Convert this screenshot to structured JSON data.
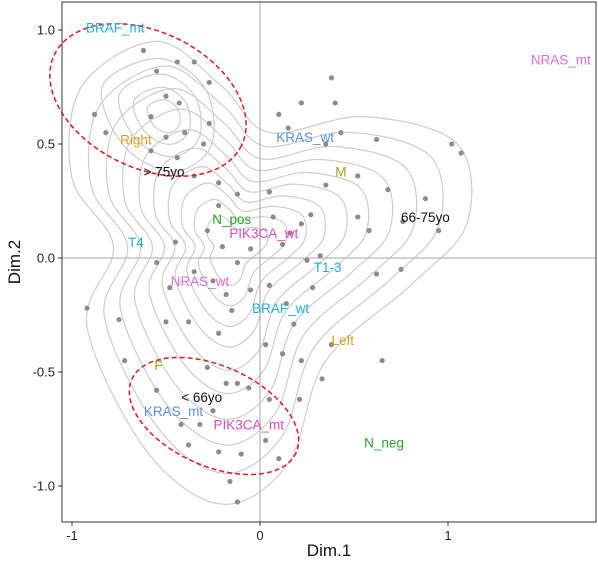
{
  "chart_data": {
    "type": "scatter",
    "title": "",
    "xlabel": "Dim.1",
    "ylabel": "Dim.2",
    "xlim": [
      -1.05,
      1.85
    ],
    "ylim": [
      -1.15,
      1.12
    ],
    "xticks": [
      -1,
      0,
      1
    ],
    "yticks": [
      -1.0,
      -0.5,
      0.0,
      0.5,
      1.0
    ],
    "xtick_labels": [
      "-1",
      "0",
      "1"
    ],
    "ytick_labels": [
      "-1.0",
      "-0.5",
      "0.0",
      "0.5",
      "1.0"
    ],
    "grid": false,
    "reference_lines": {
      "x": 0,
      "y": 0
    },
    "category_labels": [
      {
        "text": "BRAF_mt",
        "x": -0.77,
        "y": 1.01,
        "color": "#1fb5c9"
      },
      {
        "text": "NRAS_mt",
        "x": 1.6,
        "y": 0.87,
        "color": "#d66ed6"
      },
      {
        "text": "Right",
        "x": -0.66,
        "y": 0.52,
        "color": "#d4a020"
      },
      {
        "text": "KRAS_wt",
        "x": 0.24,
        "y": 0.53,
        "color": "#5b8fd9"
      },
      {
        "text": "> 75yo",
        "x": -0.51,
        "y": 0.38,
        "color": "#111111"
      },
      {
        "text": "M",
        "x": 0.43,
        "y": 0.38,
        "color": "#a0a020"
      },
      {
        "text": "N_pos",
        "x": -0.15,
        "y": 0.17,
        "color": "#2ca02c"
      },
      {
        "text": "66-75yo",
        "x": 0.88,
        "y": 0.18,
        "color": "#111111"
      },
      {
        "text": "PIK3CA_wt",
        "x": 0.02,
        "y": 0.11,
        "color": "#e04ab3"
      },
      {
        "text": "T4",
        "x": -0.66,
        "y": 0.07,
        "color": "#1fb5b5"
      },
      {
        "text": "T1-3",
        "x": 0.36,
        "y": -0.04,
        "color": "#1fb5b5"
      },
      {
        "text": "NRAS_wt",
        "x": -0.32,
        "y": -0.1,
        "color": "#d66ed6"
      },
      {
        "text": "BRAF_wt",
        "x": 0.11,
        "y": -0.22,
        "color": "#1fb5c9"
      },
      {
        "text": "Left",
        "x": 0.44,
        "y": -0.36,
        "color": "#d4a020"
      },
      {
        "text": "F",
        "x": -0.54,
        "y": -0.47,
        "color": "#a0a020"
      },
      {
        "text": "< 66yo",
        "x": -0.31,
        "y": -0.61,
        "color": "#111111"
      },
      {
        "text": "KRAS_mt",
        "x": -0.46,
        "y": -0.67,
        "color": "#5b8fd9"
      },
      {
        "text": "PIK3CA_mt",
        "x": -0.06,
        "y": -0.73,
        "color": "#e04ab3"
      },
      {
        "text": "N_neg",
        "x": 0.66,
        "y": -0.81,
        "color": "#2ca02c"
      }
    ],
    "points": [
      [
        -0.62,
        0.91
      ],
      [
        -0.55,
        0.82
      ],
      [
        -0.44,
        0.86
      ],
      [
        -0.35,
        0.86
      ],
      [
        -0.27,
        0.77
      ],
      [
        -0.27,
        0.59
      ],
      [
        -0.5,
        0.71
      ],
      [
        -0.43,
        0.68
      ],
      [
        -0.58,
        0.62
      ],
      [
        -0.88,
        0.63
      ],
      [
        -0.82,
        0.55
      ],
      [
        -0.5,
        0.53
      ],
      [
        -0.4,
        0.55
      ],
      [
        -0.3,
        0.5
      ],
      [
        -0.44,
        0.44
      ],
      [
        -0.58,
        0.47
      ],
      [
        -0.35,
        0.36
      ],
      [
        -0.22,
        0.33
      ],
      [
        -0.22,
        0.23
      ],
      [
        -0.12,
        0.28
      ],
      [
        0.05,
        0.29
      ],
      [
        0.07,
        0.18
      ],
      [
        0.16,
        0.11
      ],
      [
        0.22,
        0.15
      ],
      [
        0.27,
        0.19
      ],
      [
        0.38,
        0.79
      ],
      [
        0.4,
        0.68
      ],
      [
        0.22,
        0.68
      ],
      [
        0.1,
        0.63
      ],
      [
        0.15,
        0.57
      ],
      [
        0.35,
        0.5
      ],
      [
        0.43,
        0.55
      ],
      [
        0.62,
        0.52
      ],
      [
        0.52,
        0.36
      ],
      [
        0.35,
        0.32
      ],
      [
        0.68,
        0.3
      ],
      [
        0.52,
        0.18
      ],
      [
        0.58,
        0.12
      ],
      [
        0.76,
        0.16
      ],
      [
        0.88,
        0.26
      ],
      [
        1.02,
        0.5
      ],
      [
        1.07,
        0.46
      ],
      [
        0.95,
        0.12
      ],
      [
        0.75,
        -0.05
      ],
      [
        0.62,
        -0.07
      ],
      [
        0.32,
        0.01
      ],
      [
        0.25,
        -0.01
      ],
      [
        0.12,
        0.06
      ],
      [
        -0.05,
        0.04
      ],
      [
        -0.12,
        -0.02
      ],
      [
        -0.2,
        0.05
      ],
      [
        -0.28,
        0.12
      ],
      [
        -0.45,
        0.07
      ],
      [
        -0.55,
        -0.02
      ],
      [
        -0.48,
        -0.13
      ],
      [
        -0.35,
        -0.06
      ],
      [
        -0.25,
        -0.1
      ],
      [
        -0.18,
        -0.16
      ],
      [
        -0.05,
        -0.14
      ],
      [
        0.05,
        -0.12
      ],
      [
        0.14,
        -0.2
      ],
      [
        -0.15,
        -0.23
      ],
      [
        -0.22,
        -0.33
      ],
      [
        -0.38,
        -0.28
      ],
      [
        -0.5,
        -0.28
      ],
      [
        -0.75,
        -0.27
      ],
      [
        -0.92,
        -0.22
      ],
      [
        -0.72,
        -0.45
      ],
      [
        0.03,
        -0.38
      ],
      [
        0.12,
        -0.42
      ],
      [
        0.22,
        -0.45
      ],
      [
        0.38,
        -0.38
      ],
      [
        0.65,
        -0.45
      ],
      [
        0.33,
        -0.53
      ],
      [
        0.21,
        -0.62
      ],
      [
        0.05,
        -0.62
      ],
      [
        -0.06,
        -0.57
      ],
      [
        -0.12,
        -0.55
      ],
      [
        -0.18,
        -0.55
      ],
      [
        -0.25,
        -0.67
      ],
      [
        -0.32,
        -0.73
      ],
      [
        -0.42,
        -0.73
      ],
      [
        -0.55,
        -0.58
      ],
      [
        -0.38,
        -0.82
      ],
      [
        -0.22,
        -0.85
      ],
      [
        -0.1,
        -0.86
      ],
      [
        0.03,
        -0.8
      ],
      [
        0.1,
        -0.88
      ],
      [
        -0.16,
        -0.98
      ],
      [
        -0.12,
        -1.07
      ],
      [
        -0.28,
        -0.48
      ],
      [
        0.28,
        -0.13
      ],
      [
        0.18,
        -0.29
      ]
    ],
    "density_contours": true,
    "confidence_ellipses": 2
  }
}
